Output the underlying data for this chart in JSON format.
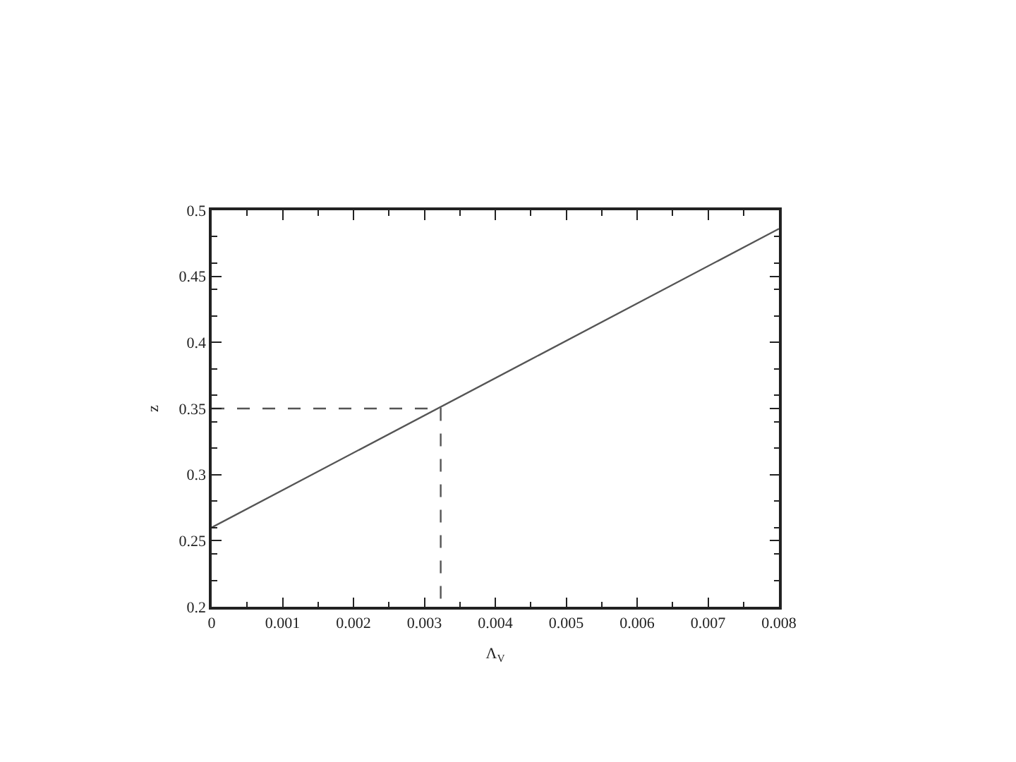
{
  "chart_data": {
    "type": "line",
    "xlabel": "Λ$_{V}$",
    "ylabel": "z",
    "xlim": [
      0,
      0.008
    ],
    "xticks": [
      0,
      0.001,
      0.002,
      0.003,
      0.004,
      0.005,
      0.006,
      0.007,
      0.008
    ],
    "ylim": [
      0.2,
      0.5
    ],
    "yticks": [
      0.2,
      0.25,
      0.3,
      0.35,
      0.4,
      0.45,
      0.5
    ],
    "series": [
      {
        "color": "#555555",
        "x": [
          0,
          0.008
        ],
        "values": [
          0.26,
          0.486
        ],
        "line_style": "solid"
      },
      {
        "color": "#555555",
        "x": [
          0,
          0.00323,
          0.00323
        ],
        "values": [
          0.35,
          0.35,
          0.2
        ],
        "line_style": "dashed"
      }
    ]
  }
}
